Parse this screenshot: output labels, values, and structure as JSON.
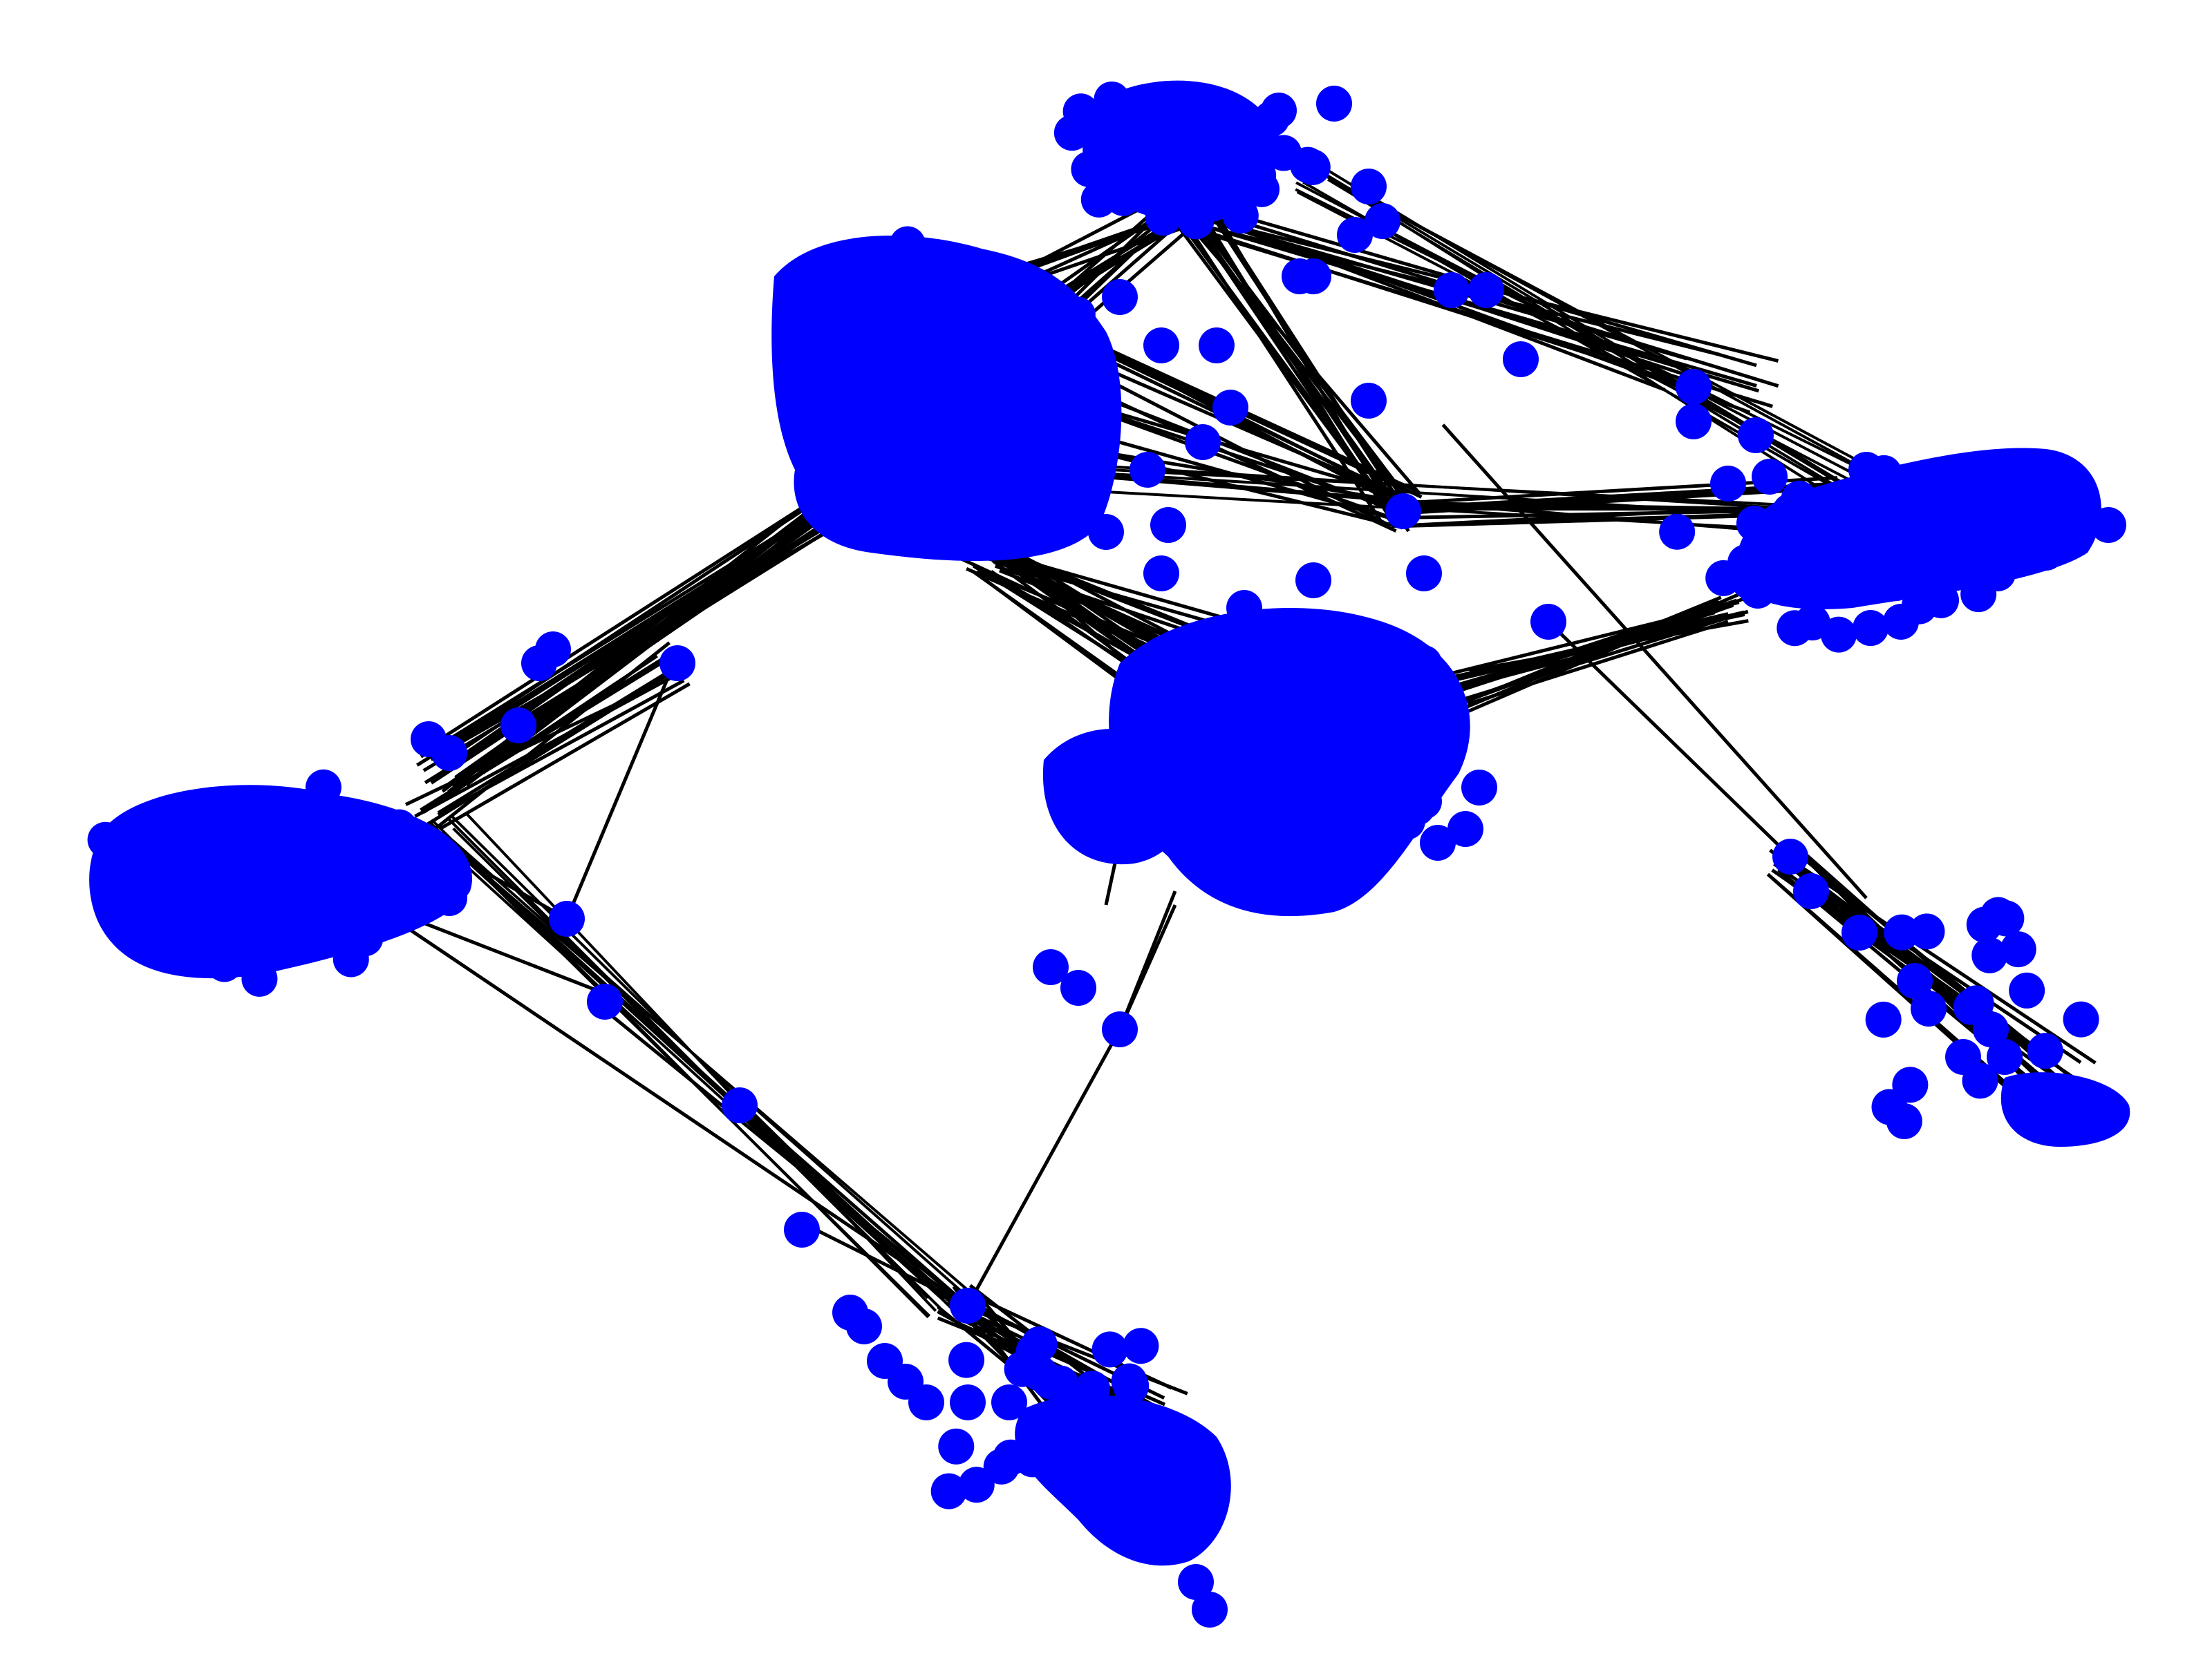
{
  "diagram": {
    "type": "network-graph",
    "labels_shown": false,
    "colors": {
      "node": "#0000ff",
      "edge": "#000000",
      "background": "#ffffff"
    },
    "clusters": [
      {
        "id": "top-center-hub",
        "density": "very-high"
      },
      {
        "id": "top-crown",
        "density": "high"
      },
      {
        "id": "left-cluster",
        "density": "very-high"
      },
      {
        "id": "center-right-cluster",
        "density": "very-high"
      },
      {
        "id": "right-cluster",
        "density": "high"
      },
      {
        "id": "bottom-cluster",
        "density": "medium"
      },
      {
        "id": "far-right-tail",
        "density": "medium"
      }
    ]
  }
}
